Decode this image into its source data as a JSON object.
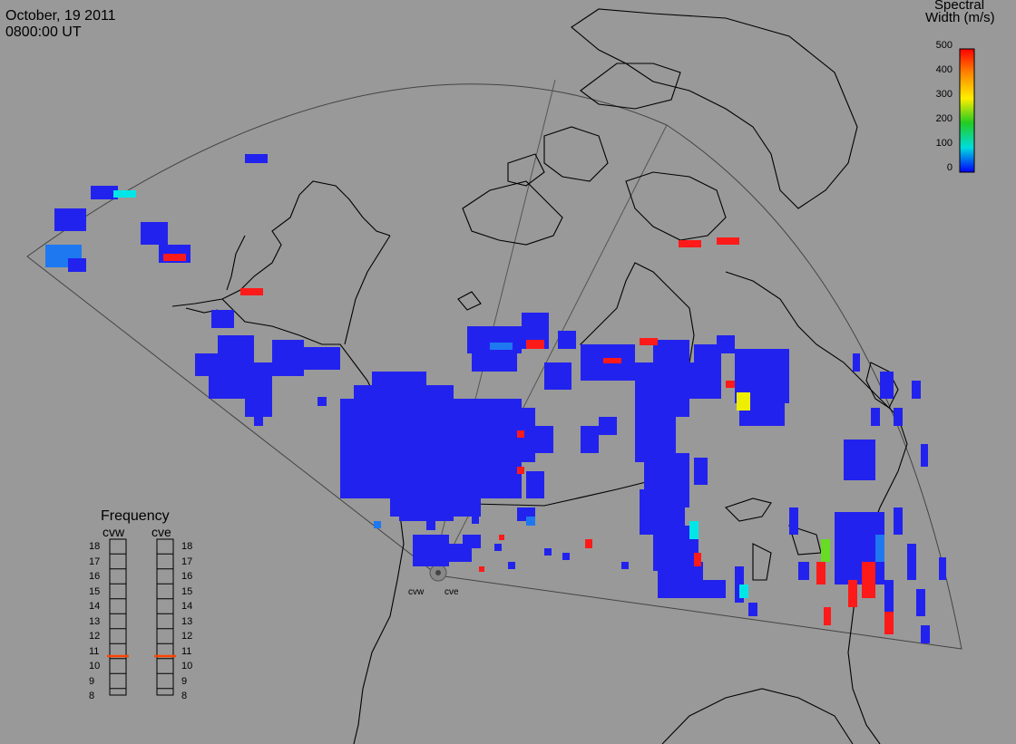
{
  "header": {
    "date": "October, 19 2011",
    "time": "0800:00 UT"
  },
  "colorbar": {
    "title_line1": "Spectral",
    "title_line2": "Width (m/s)",
    "ticks": [
      "500",
      "400",
      "300",
      "200",
      "100",
      "0"
    ],
    "gradient": [
      "#ff0000",
      "#ffaa00",
      "#ffff00",
      "#00dd00",
      "#00dddd",
      "#0000ff"
    ]
  },
  "frequency_panel": {
    "title": "Frequency",
    "radars": [
      {
        "label": "cvw",
        "selected_mhz": 11,
        "marker_color": "#ff4400"
      },
      {
        "label": "cve",
        "selected_mhz": 11,
        "marker_color": "#ff4400"
      }
    ],
    "scale": [
      "18",
      "17",
      "16",
      "15",
      "14",
      "13",
      "12",
      "11",
      "10",
      "9",
      "8"
    ]
  },
  "radar_site_labels": [
    "cvw",
    "cve"
  ],
  "colors": {
    "background": "#999999",
    "coastline": "#000000",
    "fov_outline": "#555555",
    "echo_low": "#2222ee",
    "echo_mid": "#1e78f0",
    "echo_cyan": "#00e6e6",
    "echo_green": "#66dd22",
    "echo_yellow": "#eeee00",
    "echo_red": "#ff1a1a"
  }
}
